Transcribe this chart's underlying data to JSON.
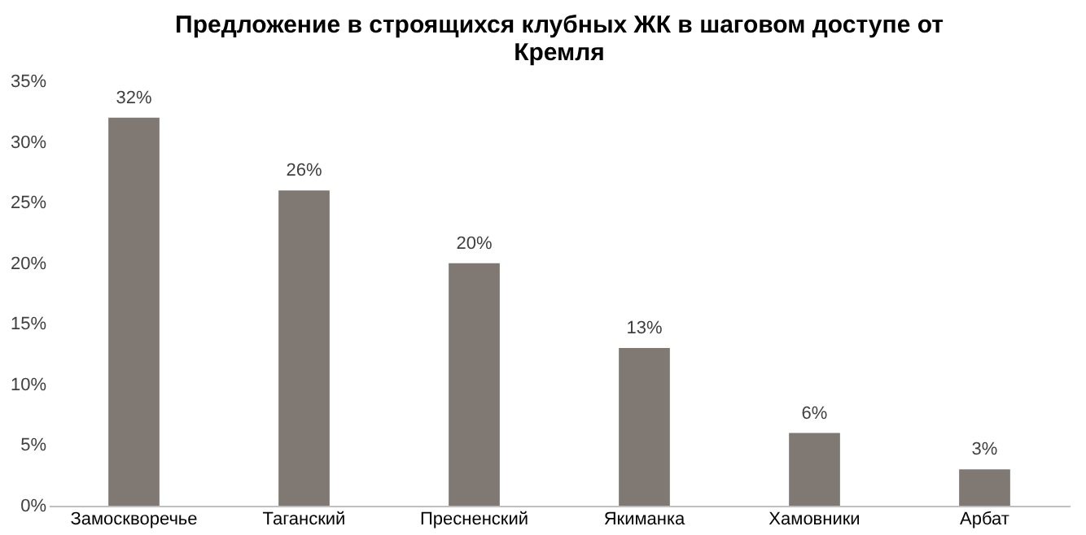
{
  "chart_data": {
    "type": "bar",
    "title": "Предложение в строящихся клубных ЖК в шаговом доступе от Кремля",
    "categories": [
      "Замоскворечье",
      "Таганский",
      "Пресненский",
      "Якиманка",
      "Хамовники",
      "Арбат"
    ],
    "values": [
      32,
      26,
      20,
      13,
      6,
      3
    ],
    "value_labels": [
      "32%",
      "26%",
      "20%",
      "13%",
      "6%",
      "3%"
    ],
    "color": "#7f7873",
    "ylim": [
      0,
      35
    ],
    "yticks": [
      {
        "value": 0,
        "label": "0%"
      },
      {
        "value": 5,
        "label": "5%"
      },
      {
        "value": 10,
        "label": "10%"
      },
      {
        "value": 15,
        "label": "15%"
      },
      {
        "value": 20,
        "label": "20%"
      },
      {
        "value": 25,
        "label": "25%"
      },
      {
        "value": 30,
        "label": "30%"
      },
      {
        "value": 35,
        "label": "35%"
      }
    ],
    "grid": false
  }
}
